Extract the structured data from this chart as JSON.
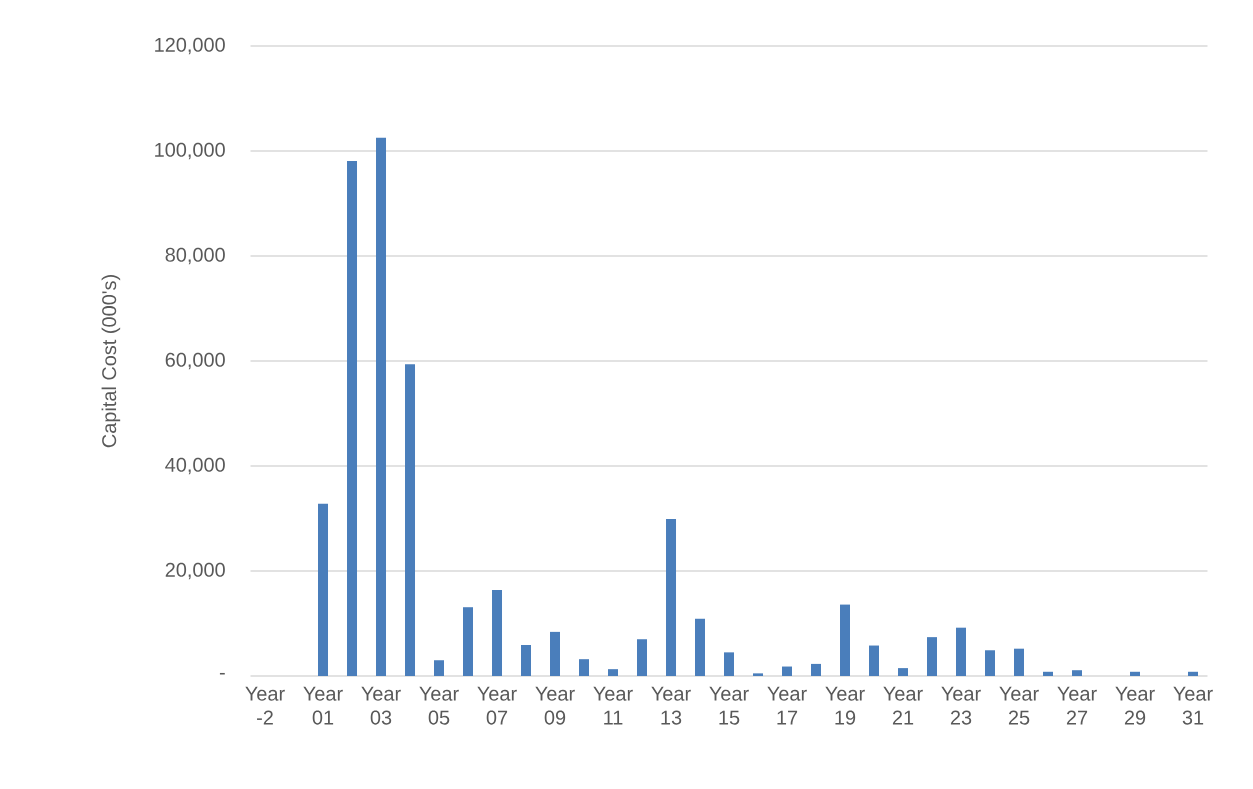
{
  "chart_data": {
    "type": "bar",
    "ylabel": "Capital Cost (000's)",
    "categories": [
      "Year -2",
      null,
      "Year 01",
      null,
      "Year 03",
      null,
      "Year 05",
      null,
      "Year 07",
      null,
      "Year 09",
      null,
      "Year 11",
      null,
      "Year 13",
      null,
      "Year 15",
      null,
      "Year 17",
      null,
      "Year 19",
      null,
      "Year 21",
      null,
      "Year 23",
      null,
      "Year 25",
      null,
      "Year 27",
      null,
      "Year 29",
      null,
      "Year 31"
    ],
    "values": [
      0,
      0,
      32800,
      98100,
      102500,
      59400,
      3000,
      13100,
      16400,
      5900,
      8400,
      3200,
      1300,
      7000,
      29900,
      10900,
      4500,
      500,
      1800,
      2300,
      13600,
      5800,
      1500,
      7400,
      9200,
      4900,
      5200,
      800,
      1100,
      0,
      800,
      0,
      800
    ],
    "color": "#4a7ebb",
    "ylim": [
      0,
      120000
    ],
    "yticks": [
      {
        "value": 0,
        "label": "-"
      },
      {
        "value": 20000,
        "label": "20,000"
      },
      {
        "value": 40000,
        "label": "40,000"
      },
      {
        "value": 60000,
        "label": "60,000"
      },
      {
        "value": 80000,
        "label": "80,000"
      },
      {
        "value": 100000,
        "label": "100,000"
      },
      {
        "value": 120000,
        "label": "120,000"
      }
    ],
    "grid": "y"
  }
}
